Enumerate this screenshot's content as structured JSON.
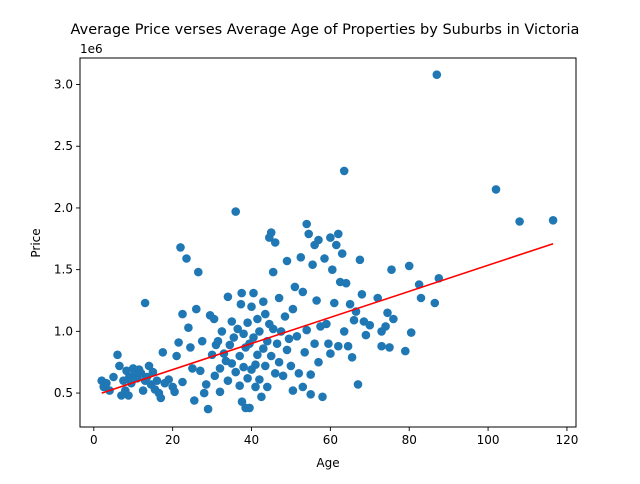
{
  "chart_data": {
    "type": "scatter",
    "title": "Average Price verses Average Age of Properties by Suburbs in Victoria",
    "xlabel": "Age",
    "ylabel": "Price",
    "y_scale_label": "1e6",
    "xlim": [
      -3.5,
      122.3
    ],
    "ylim": [
      0.225,
      3.215
    ],
    "xticks": [
      0,
      20,
      40,
      60,
      80,
      100,
      120
    ],
    "yticks": [
      0.5,
      1.0,
      1.5,
      2.0,
      2.5,
      3.0
    ],
    "xtick_labels": [
      "0",
      "20",
      "40",
      "60",
      "80",
      "100",
      "120"
    ],
    "ytick_labels": [
      "0.5",
      "1.0",
      "1.5",
      "2.0",
      "2.5",
      "3.0"
    ],
    "grid": false,
    "legend": "none",
    "colors": {
      "points": "#1f77b4",
      "fit_line": "#ff0000",
      "axes": "#000000"
    },
    "fit_line": {
      "x": [
        2.0,
        116.5
      ],
      "y": [
        0.5,
        1.71
      ]
    },
    "points": [
      [
        2.0,
        0.6
      ],
      [
        2.5,
        0.55
      ],
      [
        3.2,
        0.58
      ],
      [
        4.0,
        0.52
      ],
      [
        5.0,
        0.63
      ],
      [
        6.0,
        0.81
      ],
      [
        6.5,
        0.72
      ],
      [
        7.0,
        0.48
      ],
      [
        7.5,
        0.6
      ],
      [
        8.0,
        0.52
      ],
      [
        8.3,
        0.68
      ],
      [
        8.8,
        0.48
      ],
      [
        9.0,
        0.63
      ],
      [
        9.5,
        0.58
      ],
      [
        10.0,
        0.7
      ],
      [
        10.4,
        0.66
      ],
      [
        11.0,
        0.62
      ],
      [
        11.5,
        0.69
      ],
      [
        12.0,
        0.66
      ],
      [
        12.5,
        0.52
      ],
      [
        13.0,
        1.23
      ],
      [
        13.0,
        0.6
      ],
      [
        13.5,
        0.63
      ],
      [
        14.0,
        0.72
      ],
      [
        14.5,
        0.57
      ],
      [
        15.0,
        0.67
      ],
      [
        15.5,
        0.53
      ],
      [
        16.0,
        0.6
      ],
      [
        16.5,
        0.5
      ],
      [
        17.0,
        0.46
      ],
      [
        17.5,
        0.83
      ],
      [
        18.0,
        0.58
      ],
      [
        19.0,
        0.61
      ],
      [
        20.0,
        0.55
      ],
      [
        20.5,
        0.51
      ],
      [
        21.0,
        0.8
      ],
      [
        21.5,
        0.91
      ],
      [
        22.0,
        1.68
      ],
      [
        22.5,
        1.14
      ],
      [
        22.5,
        0.59
      ],
      [
        23.5,
        1.59
      ],
      [
        24.0,
        1.03
      ],
      [
        24.5,
        0.87
      ],
      [
        25.0,
        0.7
      ],
      [
        25.5,
        0.44
      ],
      [
        26.0,
        1.18
      ],
      [
        26.5,
        1.48
      ],
      [
        27.0,
        0.68
      ],
      [
        27.5,
        0.92
      ],
      [
        28.0,
        0.5
      ],
      [
        28.5,
        0.57
      ],
      [
        29.0,
        0.37
      ],
      [
        29.5,
        1.13
      ],
      [
        30.0,
        0.81
      ],
      [
        30.5,
        1.1
      ],
      [
        30.7,
        0.64
      ],
      [
        31.0,
        0.89
      ],
      [
        31.5,
        0.92
      ],
      [
        32.0,
        0.51
      ],
      [
        32.0,
        0.7
      ],
      [
        32.5,
        1.0
      ],
      [
        33.0,
        0.82
      ],
      [
        33.5,
        0.76
      ],
      [
        34.0,
        1.28
      ],
      [
        34.0,
        0.6
      ],
      [
        34.5,
        0.89
      ],
      [
        35.0,
        1.08
      ],
      [
        35.0,
        0.74
      ],
      [
        35.5,
        0.95
      ],
      [
        36.0,
        1.97
      ],
      [
        36.0,
        0.67
      ],
      [
        36.5,
        1.02
      ],
      [
        37.0,
        0.8
      ],
      [
        37.0,
        0.56
      ],
      [
        37.3,
        1.22
      ],
      [
        37.5,
        1.31
      ],
      [
        37.6,
        0.43
      ],
      [
        38.0,
        0.98
      ],
      [
        38.0,
        0.71
      ],
      [
        38.5,
        0.87
      ],
      [
        38.5,
        0.38
      ],
      [
        39.0,
        1.07
      ],
      [
        39.0,
        0.62
      ],
      [
        39.5,
        0.9
      ],
      [
        39.5,
        0.38
      ],
      [
        40.0,
        0.69
      ],
      [
        40.0,
        1.2
      ],
      [
        40.5,
        0.95
      ],
      [
        40.5,
        1.31
      ],
      [
        41.0,
        0.73
      ],
      [
        41.0,
        0.55
      ],
      [
        41.5,
        1.1
      ],
      [
        41.5,
        0.81
      ],
      [
        42.0,
        1.0
      ],
      [
        42.0,
        0.61
      ],
      [
        42.5,
        0.47
      ],
      [
        43.0,
        1.24
      ],
      [
        43.0,
        0.86
      ],
      [
        43.5,
        0.72
      ],
      [
        43.5,
        1.14
      ],
      [
        44.0,
        0.92
      ],
      [
        44.0,
        0.55
      ],
      [
        44.5,
        1.76
      ],
      [
        44.5,
        1.06
      ],
      [
        45.0,
        1.8
      ],
      [
        45.0,
        0.8
      ],
      [
        45.5,
        1.48
      ],
      [
        45.5,
        1.02
      ],
      [
        46.0,
        0.66
      ],
      [
        46.0,
        1.72
      ],
      [
        46.5,
        0.9
      ],
      [
        47.0,
        1.27
      ],
      [
        47.0,
        0.75
      ],
      [
        47.5,
        1.0
      ],
      [
        48.0,
        0.64
      ],
      [
        48.5,
        1.12
      ],
      [
        49.0,
        1.57
      ],
      [
        49.0,
        0.85
      ],
      [
        49.5,
        0.94
      ],
      [
        50.0,
        0.72
      ],
      [
        50.5,
        1.18
      ],
      [
        50.5,
        0.52
      ],
      [
        51.0,
        1.36
      ],
      [
        51.5,
        0.96
      ],
      [
        52.0,
        0.66
      ],
      [
        52.5,
        1.6
      ],
      [
        53.0,
        1.32
      ],
      [
        53.0,
        0.55
      ],
      [
        53.5,
        0.83
      ],
      [
        54.0,
        1.87
      ],
      [
        54.0,
        1.01
      ],
      [
        54.5,
        1.79
      ],
      [
        55.0,
        0.65
      ],
      [
        55.0,
        0.49
      ],
      [
        55.5,
        1.54
      ],
      [
        56.0,
        1.7
      ],
      [
        56.0,
        0.9
      ],
      [
        56.5,
        1.25
      ],
      [
        57.0,
        1.74
      ],
      [
        57.0,
        0.75
      ],
      [
        57.5,
        1.04
      ],
      [
        58.0,
        0.47
      ],
      [
        58.5,
        1.59
      ],
      [
        59.0,
        1.06
      ],
      [
        59.5,
        0.9
      ],
      [
        60.0,
        1.76
      ],
      [
        60.0,
        0.82
      ],
      [
        60.5,
        1.5
      ],
      [
        61.0,
        1.23
      ],
      [
        61.5,
        1.7
      ],
      [
        62.0,
        1.79
      ],
      [
        62.0,
        0.88
      ],
      [
        62.5,
        1.4
      ],
      [
        63.0,
        1.63
      ],
      [
        63.5,
        2.3
      ],
      [
        63.5,
        1.0
      ],
      [
        64.0,
        1.39
      ],
      [
        64.5,
        0.88
      ],
      [
        65.0,
        1.22
      ],
      [
        65.5,
        0.79
      ],
      [
        66.0,
        1.09
      ],
      [
        66.5,
        1.16
      ],
      [
        67.0,
        0.57
      ],
      [
        67.5,
        1.58
      ],
      [
        68.0,
        1.3
      ],
      [
        68.5,
        1.08
      ],
      [
        69.0,
        0.97
      ],
      [
        70.0,
        1.05
      ],
      [
        72.0,
        1.27
      ],
      [
        73.0,
        0.88
      ],
      [
        73.0,
        1.0
      ],
      [
        74.0,
        1.04
      ],
      [
        74.5,
        1.15
      ],
      [
        75.0,
        0.87
      ],
      [
        75.5,
        1.5
      ],
      [
        76.0,
        1.1
      ],
      [
        79.0,
        0.84
      ],
      [
        80.0,
        1.53
      ],
      [
        80.5,
        0.99
      ],
      [
        82.5,
        1.38
      ],
      [
        83.0,
        1.27
      ],
      [
        86.5,
        1.23
      ],
      [
        87.0,
        3.08
      ],
      [
        87.5,
        1.43
      ],
      [
        102.0,
        2.15
      ],
      [
        108.0,
        1.89
      ],
      [
        116.5,
        1.9
      ]
    ]
  }
}
